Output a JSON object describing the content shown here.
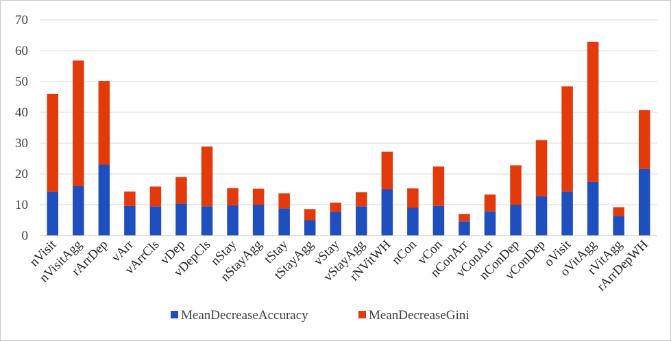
{
  "chart_data": {
    "type": "bar",
    "stacked": true,
    "categories": [
      "nVisit",
      "nVisitAgg",
      "rArrDep",
      "vArr",
      "vArrCls",
      "vDep",
      "vDepCls",
      "nStay",
      "nStayAgg",
      "tStay",
      "tStayAgg",
      "vStay",
      "vStayAgg",
      "rNVitWH",
      "nCon",
      "vCon",
      "nConArr",
      "vConArr",
      "nConDep",
      "vConDep",
      "oVisit",
      "oVitAgg",
      "rVitAgg",
      "rArrDepWH"
    ],
    "series": [
      {
        "name": "MeanDecreaseAccuracy",
        "color": "#1f4fbf",
        "values": [
          14.3,
          16.0,
          23.0,
          9.6,
          9.5,
          10.4,
          9.5,
          9.8,
          10.0,
          8.8,
          5.0,
          7.7,
          9.5,
          15.0,
          9.0,
          9.6,
          4.6,
          7.8,
          10.0,
          12.8,
          14.3,
          17.4,
          6.4,
          21.6
        ]
      },
      {
        "name": "MeanDecreaseGini",
        "color": "#e33a0c",
        "values": [
          31.7,
          40.8,
          27.2,
          4.7,
          6.4,
          8.6,
          19.4,
          5.6,
          5.2,
          4.9,
          3.6,
          3.0,
          4.6,
          12.2,
          6.3,
          12.8,
          2.4,
          5.5,
          12.8,
          18.2,
          34.1,
          45.5,
          2.8,
          19.1
        ]
      }
    ],
    "yticks": [
      0,
      10,
      20,
      30,
      40,
      50,
      60,
      70
    ],
    "ylim": [
      0,
      70
    ],
    "grid": true,
    "legend": "bottom"
  }
}
